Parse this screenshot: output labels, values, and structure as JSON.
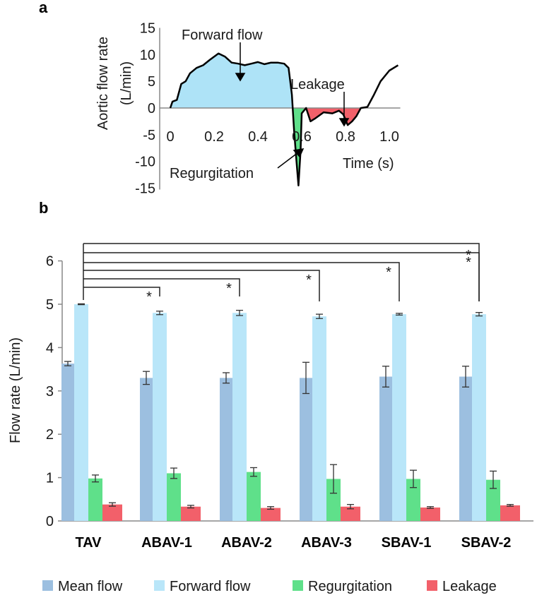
{
  "chart_data": [
    {
      "type": "area",
      "panel_label": "a",
      "xlabel": "Time (s)",
      "ylabel_line1": "Aortic flow rate",
      "ylabel_line2": "(L/min)",
      "xlim": [
        -0.05,
        1.05
      ],
      "ylim": [
        -15,
        15
      ],
      "x_ticks": [
        "0",
        "0.2",
        "0.4",
        "0.6",
        "0.8",
        "1.0"
      ],
      "y_ticks": [
        "15",
        "10",
        "5",
        "0",
        "-5",
        "-10",
        "-15"
      ],
      "annotations": [
        "Forward flow",
        "Leakage",
        "Regurgitation"
      ],
      "colors": {
        "forward": "#aee3f7",
        "regurgitation": "#5fe08a",
        "leakage": "#f2606a",
        "line": "#000000"
      },
      "series": [
        {
          "x": [
            0,
            0.01,
            0.03,
            0.05,
            0.07,
            0.09,
            0.12,
            0.15,
            0.18,
            0.22,
            0.25,
            0.28,
            0.31,
            0.34,
            0.37,
            0.4,
            0.43,
            0.46,
            0.49,
            0.52,
            0.54,
            0.555,
            0.565,
            0.575,
            0.585,
            0.595,
            0.6,
            0.61,
            0.62,
            0.64,
            0.66,
            0.7,
            0.74,
            0.77,
            0.79,
            0.81,
            0.83,
            0.85,
            0.87,
            0.9,
            0.93,
            0.96,
            1.0,
            1.04
          ],
          "y": [
            0,
            1.2,
            1.5,
            4.5,
            5.0,
            6.5,
            7.5,
            8.0,
            9.0,
            10.2,
            9.6,
            8.5,
            8.3,
            8.0,
            8.3,
            8.6,
            8.2,
            8.5,
            8.5,
            8.3,
            7.5,
            2.5,
            -4.0,
            -9.5,
            -14.5,
            -8.0,
            -1.0,
            -0.5,
            0,
            -2.5,
            -2.0,
            -0.8,
            -1.0,
            -0.5,
            -1.2,
            -3.2,
            -2.5,
            -1.5,
            0,
            0.2,
            2.5,
            5.0,
            7.0,
            8.0
          ]
        }
      ]
    },
    {
      "type": "bar",
      "panel_label": "b",
      "ylabel": "Flow rate (L/min)",
      "ylim": [
        0,
        6
      ],
      "y_ticks": [
        "0",
        "1",
        "2",
        "3",
        "4",
        "5",
        "6"
      ],
      "categories": [
        "TAV",
        "ABAV-1",
        "ABAV-2",
        "ABAV-3",
        "SBAV-1",
        "SBAV-2"
      ],
      "significance_marker": "*",
      "series": [
        {
          "name": "Mean flow",
          "color": "#9cbfe0",
          "values": [
            3.63,
            3.3,
            3.3,
            3.3,
            3.33,
            3.33
          ],
          "errors": [
            0.05,
            0.15,
            0.12,
            0.36,
            0.24,
            0.24
          ]
        },
        {
          "name": "Forward flow",
          "color": "#b9e6f9",
          "values": [
            5.0,
            4.8,
            4.8,
            4.72,
            4.77,
            4.77
          ],
          "errors": [
            0.01,
            0.04,
            0.06,
            0.05,
            0.02,
            0.04
          ]
        },
        {
          "name": "Regurgitation",
          "color": "#5fe08a",
          "values": [
            0.98,
            1.1,
            1.13,
            0.97,
            0.97,
            0.95
          ],
          "errors": [
            0.08,
            0.12,
            0.1,
            0.33,
            0.2,
            0.2
          ]
        },
        {
          "name": "Leakage",
          "color": "#f2606a",
          "values": [
            0.38,
            0.33,
            0.3,
            0.33,
            0.31,
            0.36
          ],
          "errors": [
            0.04,
            0.03,
            0.03,
            0.05,
            0.02,
            0.02
          ]
        }
      ]
    }
  ]
}
